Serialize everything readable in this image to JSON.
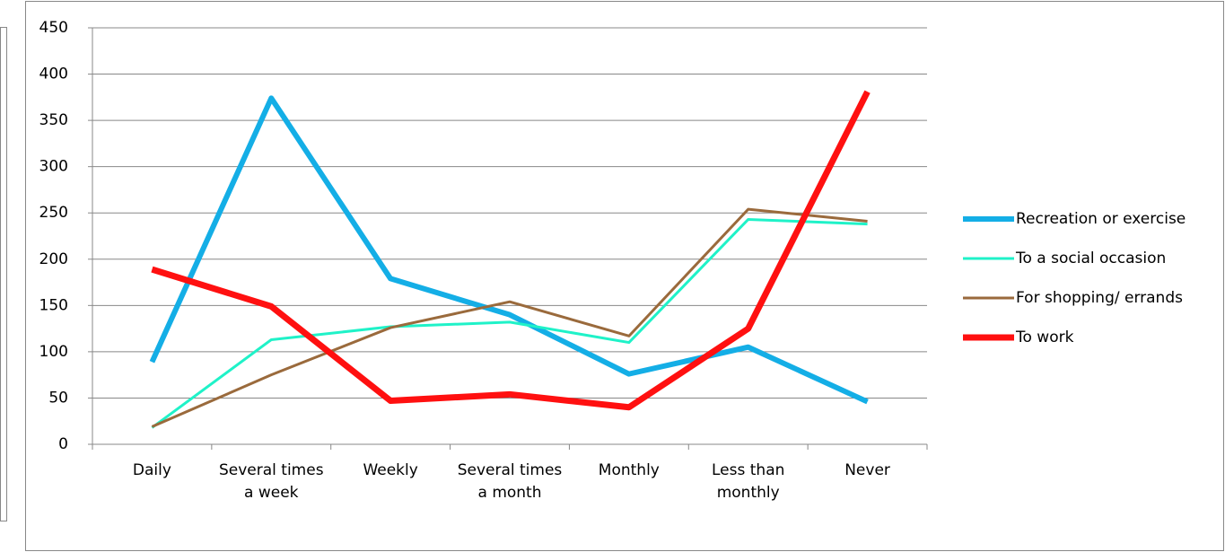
{
  "chart_data": {
    "type": "line",
    "categories": [
      "Daily",
      "Several times a week",
      "Weekly",
      "Several times a month",
      "Monthly",
      "Less than monthly",
      "Never"
    ],
    "series": [
      {
        "name": "Recreation or exercise",
        "color": "#14aee6",
        "width": 6,
        "values": [
          89,
          374,
          179,
          140,
          76,
          105,
          46
        ]
      },
      {
        "name": "To a social occasion",
        "color": "#1ff2c8",
        "width": 3,
        "values": [
          18,
          113,
          127,
          132,
          110,
          243,
          238
        ]
      },
      {
        "name": "For shopping/ errands",
        "color": "#9a6a3c",
        "width": 3,
        "values": [
          19,
          75,
          126,
          154,
          117,
          254,
          241
        ]
      },
      {
        "name": "To work",
        "color": "#ff1010",
        "width": 7,
        "values": [
          189,
          149,
          47,
          54,
          40,
          125,
          381
        ]
      }
    ],
    "ylim": [
      0,
      450
    ],
    "yticks": [
      0,
      50,
      100,
      150,
      200,
      250,
      300,
      350,
      400,
      450
    ],
    "grid": true,
    "legend": "right"
  }
}
